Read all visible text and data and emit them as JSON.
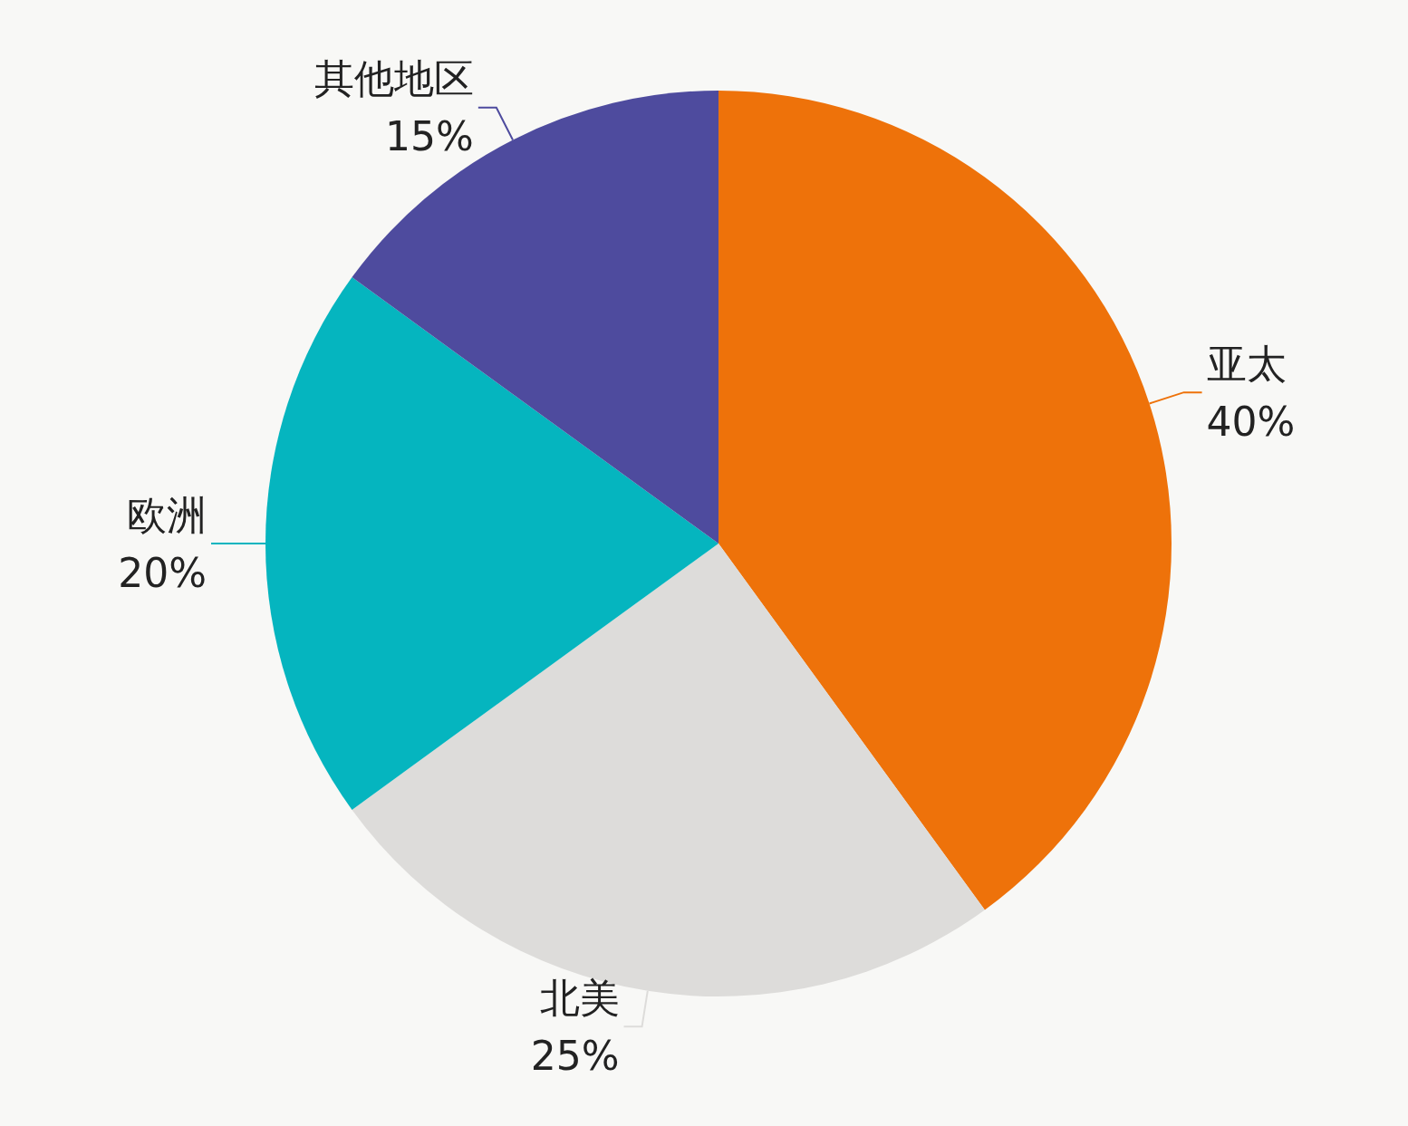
{
  "chart_data": {
    "type": "pie",
    "categories": [
      "亚太",
      "北美",
      "欧洲",
      "其他地区"
    ],
    "values": [
      40,
      25,
      20,
      15
    ],
    "value_labels": [
      "40%",
      "25%",
      "20%",
      "15%"
    ],
    "colors": [
      "#ee720a",
      "#dddcda",
      "#05b5bf",
      "#4e4b9e"
    ]
  }
}
